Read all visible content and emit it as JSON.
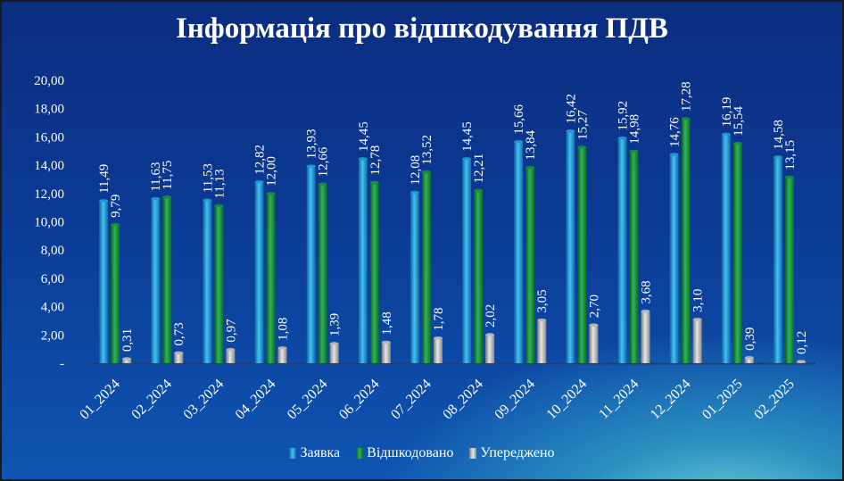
{
  "chart_data": {
    "type": "bar",
    "title": "Інформація про відшкодування ПДВ",
    "categories": [
      "01_2024",
      "02_2024",
      "03_2024",
      "04_2024",
      "05_2024",
      "06_2024",
      "07_2024",
      "08_2024",
      "09_2024",
      "10_2024",
      "11_2024",
      "12_2024",
      "01_2025",
      "02_2025"
    ],
    "series": [
      {
        "name": "Заявка",
        "color": "#1e9bd7",
        "values": [
          11.49,
          11.63,
          11.53,
          12.82,
          13.93,
          14.45,
          12.08,
          14.45,
          15.66,
          16.42,
          15.92,
          14.76,
          16.19,
          14.58
        ],
        "labels": [
          "11,49",
          "11,63",
          "11,53",
          "12,82",
          "13,93",
          "14,45",
          "12,08",
          "14,45",
          "15,66",
          "16,42",
          "15,92",
          "14,76",
          "16,19",
          "14,58"
        ]
      },
      {
        "name": "Відшкодовано",
        "color": "#1a8f3a",
        "values": [
          9.79,
          11.75,
          11.13,
          12.0,
          12.66,
          12.78,
          13.52,
          12.21,
          13.84,
          15.27,
          14.98,
          17.28,
          15.54,
          13.15
        ],
        "labels": [
          "9,79",
          "11,75",
          "11,13",
          "12,00",
          "12,66",
          "12,78",
          "13,52",
          "12,21",
          "13,84",
          "15,27",
          "14,98",
          "17,28",
          "15,54",
          "13,15"
        ]
      },
      {
        "name": "Упереджено",
        "color": "#b9b9b9",
        "values": [
          0.31,
          0.73,
          0.97,
          1.08,
          1.39,
          1.48,
          1.78,
          2.02,
          3.05,
          2.7,
          3.68,
          3.1,
          0.39,
          0.12
        ],
        "labels": [
          "0,31",
          "0,73",
          "0,97",
          "1,08",
          "1,39",
          "1,48",
          "1,78",
          "2,02",
          "3,05",
          "2,70",
          "3,68",
          "3,10",
          "0,39",
          "0,12"
        ]
      }
    ],
    "yticks": [
      {
        "value": 0,
        "label": "-"
      },
      {
        "value": 2,
        "label": "2,00"
      },
      {
        "value": 4,
        "label": "4,00"
      },
      {
        "value": 6,
        "label": "6,00"
      },
      {
        "value": 8,
        "label": "8,00"
      },
      {
        "value": 10,
        "label": "10,00"
      },
      {
        "value": 12,
        "label": "12,00"
      },
      {
        "value": 14,
        "label": "14,00"
      },
      {
        "value": 16,
        "label": "16,00"
      },
      {
        "value": 18,
        "label": "18,00"
      },
      {
        "value": 20,
        "label": "20,00"
      }
    ],
    "ylim": [
      0,
      20
    ],
    "grid": false,
    "legend_position": "bottom"
  }
}
